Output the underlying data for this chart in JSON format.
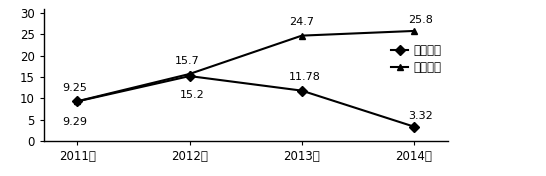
{
  "years": [
    "2011年",
    "2012年",
    "2013年",
    "2014年"
  ],
  "series1_name": "试验样地",
  "series1_values": [
    9.25,
    15.2,
    11.78,
    3.32
  ],
  "series1_labels": [
    "9.25",
    "15.2",
    "11.78",
    "3.32"
  ],
  "series1_label_offsets": [
    [
      -2,
      6
    ],
    [
      2,
      -10
    ],
    [
      2,
      6
    ],
    [
      5,
      4
    ]
  ],
  "series2_name": "对照样地",
  "series2_values": [
    9.29,
    15.7,
    24.7,
    25.8
  ],
  "series2_labels": [
    "9.29",
    "15.7",
    "24.7",
    "25.8"
  ],
  "series2_label_offsets": [
    [
      -2,
      -11
    ],
    [
      -2,
      6
    ],
    [
      0,
      6
    ],
    [
      5,
      4
    ]
  ],
  "ylim": [
    0,
    31
  ],
  "yticks": [
    0,
    5,
    10,
    15,
    20,
    25,
    30
  ],
  "line_color": "#000000",
  "marker_diamond": "D",
  "marker_triangle": "^",
  "marker_size": 5,
  "background_color": "#ffffff",
  "font_size": 8.5,
  "label_font_size": 8.0,
  "tick_font_size": 8.5
}
